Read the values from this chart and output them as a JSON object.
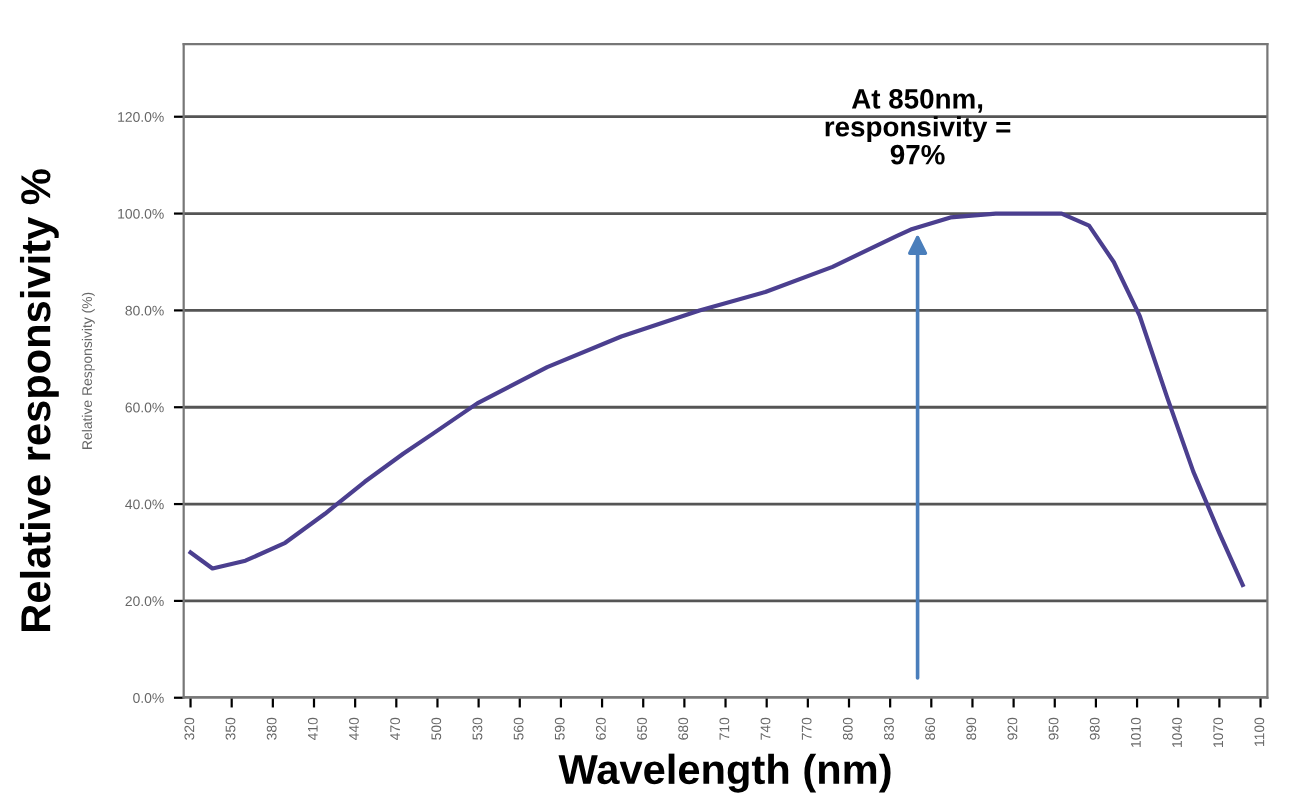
{
  "chart_data": {
    "type": "line",
    "xlabel": "Wavelength (nm)",
    "ylabel": "Relative responsivity %",
    "annotations": [
      "Relative Responsivity (%)",
      {
        "text": "At 850nm,\nresponsivity =\n97%",
        "x": 850,
        "y": 97
      }
    ],
    "x": [
      320,
      336,
      360,
      389,
      418,
      447,
      475,
      497,
      529,
      580,
      634,
      691,
      739,
      788,
      835,
      845,
      874,
      907,
      955,
      975,
      993,
      1012,
      1032,
      1051,
      1070,
      1087
    ],
    "series": [
      {
        "color": "#4b3f8f",
        "values": [
          30,
          26.7,
          28.3,
          32,
          38,
          44.6,
          50.4,
          54.6,
          60.8,
          68.3,
          74.6,
          80,
          83.8,
          89,
          95.4,
          96.7,
          99.2,
          100,
          100,
          97.5,
          90,
          78.8,
          62,
          46.7,
          34,
          23.3
        ]
      }
    ],
    "xlim": [
      315,
      1105
    ],
    "ylim": [
      0,
      135
    ],
    "xticks": [
      320,
      350,
      380,
      410,
      440,
      470,
      500,
      530,
      560,
      590,
      620,
      650,
      680,
      710,
      740,
      770,
      800,
      830,
      860,
      890,
      920,
      950,
      980,
      1010,
      1040,
      1070,
      1100
    ],
    "yticks": [
      {
        "value": 0,
        "label": "0.0%"
      },
      {
        "value": 20,
        "label": "20.0%"
      },
      {
        "value": 40,
        "label": "40.0%"
      },
      {
        "value": 60,
        "label": "60.0%"
      },
      {
        "value": 80,
        "label": "80.0%"
      },
      {
        "value": 100,
        "label": "100.0%"
      },
      {
        "value": 120,
        "label": "120.0%"
      }
    ],
    "grid": "y",
    "marker": "none",
    "line_style": "solid"
  }
}
